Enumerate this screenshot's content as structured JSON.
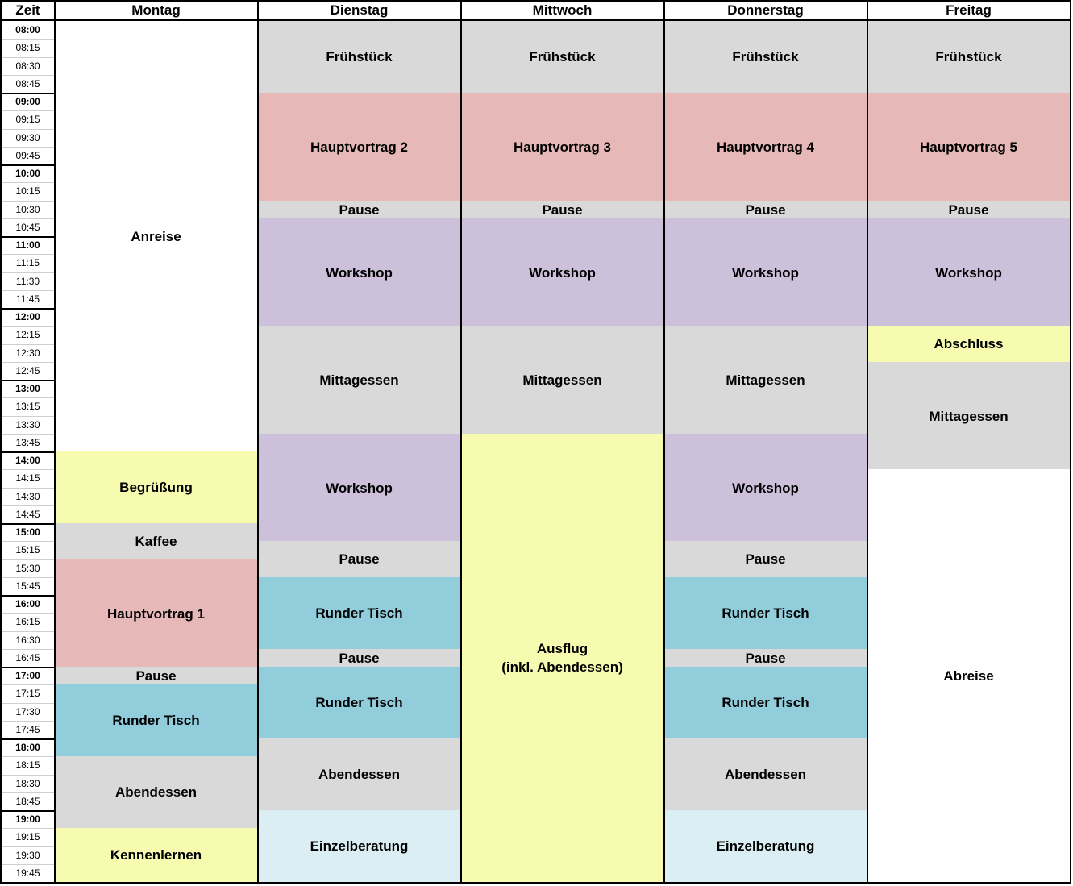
{
  "header": {
    "time_label": "Zeit",
    "days": [
      "Montag",
      "Dienstag",
      "Mittwoch",
      "Donnerstag",
      "Freitag"
    ]
  },
  "times": [
    "08:00",
    "08:15",
    "08:30",
    "08:45",
    "09:00",
    "09:15",
    "09:30",
    "09:45",
    "10:00",
    "10:15",
    "10:30",
    "10:45",
    "11:00",
    "11:15",
    "11:30",
    "11:45",
    "12:00",
    "12:15",
    "12:30",
    "12:45",
    "13:00",
    "13:15",
    "13:30",
    "13:45",
    "14:00",
    "14:15",
    "14:30",
    "14:45",
    "15:00",
    "15:15",
    "15:30",
    "15:45",
    "16:00",
    "16:15",
    "16:30",
    "16:45",
    "17:00",
    "17:15",
    "17:30",
    "17:45",
    "18:00",
    "18:15",
    "18:30",
    "18:45",
    "19:00",
    "19:15",
    "19:30",
    "19:45"
  ],
  "colors": {
    "meal": "#d9d9d9",
    "keynote": "#e6b8b7",
    "workshop": "#ccc0da",
    "table": "#92cddc",
    "social": "#f6fbb0",
    "consult": "#daeef3",
    "free": "#ffffff"
  },
  "schedule": [
    [
      {
        "label": "Anreise",
        "start": "08:00",
        "end": "14:00",
        "kind": "free"
      },
      {
        "label": "Begrüßung",
        "start": "14:00",
        "end": "15:00",
        "kind": "social"
      },
      {
        "label": "Kaffee",
        "start": "15:00",
        "end": "15:30",
        "kind": "meal"
      },
      {
        "label": "Hauptvortrag 1",
        "start": "15:30",
        "end": "17:00",
        "kind": "keynote"
      },
      {
        "label": "Pause",
        "start": "17:00",
        "end": "17:15",
        "kind": "meal"
      },
      {
        "label": "Runder Tisch",
        "start": "17:15",
        "end": "18:15",
        "kind": "table"
      },
      {
        "label": "Abendessen",
        "start": "18:15",
        "end": "19:15",
        "kind": "meal"
      },
      {
        "label": "Kennenlernen",
        "start": "19:15",
        "end": "20:00",
        "kind": "social"
      }
    ],
    [
      {
        "label": "Frühstück",
        "start": "08:00",
        "end": "09:00",
        "kind": "meal"
      },
      {
        "label": "Hauptvortrag 2",
        "start": "09:00",
        "end": "10:30",
        "kind": "keynote"
      },
      {
        "label": "Pause",
        "start": "10:30",
        "end": "10:45",
        "kind": "meal"
      },
      {
        "label": "Workshop",
        "start": "10:45",
        "end": "12:15",
        "kind": "workshop"
      },
      {
        "label": "Mittagessen",
        "start": "12:15",
        "end": "13:45",
        "kind": "meal"
      },
      {
        "label": "Workshop",
        "start": "13:45",
        "end": "15:15",
        "kind": "workshop"
      },
      {
        "label": "Pause",
        "start": "15:15",
        "end": "15:45",
        "kind": "meal"
      },
      {
        "label": "Runder Tisch",
        "start": "15:45",
        "end": "16:45",
        "kind": "table"
      },
      {
        "label": "Pause",
        "start": "16:45",
        "end": "17:00",
        "kind": "meal"
      },
      {
        "label": "Runder Tisch",
        "start": "17:00",
        "end": "18:00",
        "kind": "table"
      },
      {
        "label": "Abendessen",
        "start": "18:00",
        "end": "19:00",
        "kind": "meal"
      },
      {
        "label": "Einzelberatung",
        "start": "19:00",
        "end": "20:00",
        "kind": "consult"
      }
    ],
    [
      {
        "label": "Frühstück",
        "start": "08:00",
        "end": "09:00",
        "kind": "meal"
      },
      {
        "label": "Hauptvortrag 3",
        "start": "09:00",
        "end": "10:30",
        "kind": "keynote"
      },
      {
        "label": "Pause",
        "start": "10:30",
        "end": "10:45",
        "kind": "meal"
      },
      {
        "label": "Workshop",
        "start": "10:45",
        "end": "12:15",
        "kind": "workshop"
      },
      {
        "label": "Mittagessen",
        "start": "12:15",
        "end": "13:45",
        "kind": "meal"
      },
      {
        "label": "Ausflug\n(inkl. Abendessen)",
        "start": "13:45",
        "end": "20:00",
        "kind": "social"
      }
    ],
    [
      {
        "label": "Frühstück",
        "start": "08:00",
        "end": "09:00",
        "kind": "meal"
      },
      {
        "label": "Hauptvortrag 4",
        "start": "09:00",
        "end": "10:30",
        "kind": "keynote"
      },
      {
        "label": "Pause",
        "start": "10:30",
        "end": "10:45",
        "kind": "meal"
      },
      {
        "label": "Workshop",
        "start": "10:45",
        "end": "12:15",
        "kind": "workshop"
      },
      {
        "label": "Mittagessen",
        "start": "12:15",
        "end": "13:45",
        "kind": "meal"
      },
      {
        "label": "Workshop",
        "start": "13:45",
        "end": "15:15",
        "kind": "workshop"
      },
      {
        "label": "Pause",
        "start": "15:15",
        "end": "15:45",
        "kind": "meal"
      },
      {
        "label": "Runder Tisch",
        "start": "15:45",
        "end": "16:45",
        "kind": "table"
      },
      {
        "label": "Pause",
        "start": "16:45",
        "end": "17:00",
        "kind": "meal"
      },
      {
        "label": "Runder Tisch",
        "start": "17:00",
        "end": "18:00",
        "kind": "table"
      },
      {
        "label": "Abendessen",
        "start": "18:00",
        "end": "19:00",
        "kind": "meal"
      },
      {
        "label": "Einzelberatung",
        "start": "19:00",
        "end": "20:00",
        "kind": "consult"
      }
    ],
    [
      {
        "label": "Frühstück",
        "start": "08:00",
        "end": "09:00",
        "kind": "meal"
      },
      {
        "label": "Hauptvortrag 5",
        "start": "09:00",
        "end": "10:30",
        "kind": "keynote"
      },
      {
        "label": "Pause",
        "start": "10:30",
        "end": "10:45",
        "kind": "meal"
      },
      {
        "label": "Workshop",
        "start": "10:45",
        "end": "12:15",
        "kind": "workshop"
      },
      {
        "label": "Abschluss",
        "start": "12:15",
        "end": "12:45",
        "kind": "social"
      },
      {
        "label": "Mittagessen",
        "start": "12:45",
        "end": "14:15",
        "kind": "meal"
      },
      {
        "label": "Abreise",
        "start": "14:15",
        "end": "20:00",
        "kind": "free"
      }
    ]
  ]
}
